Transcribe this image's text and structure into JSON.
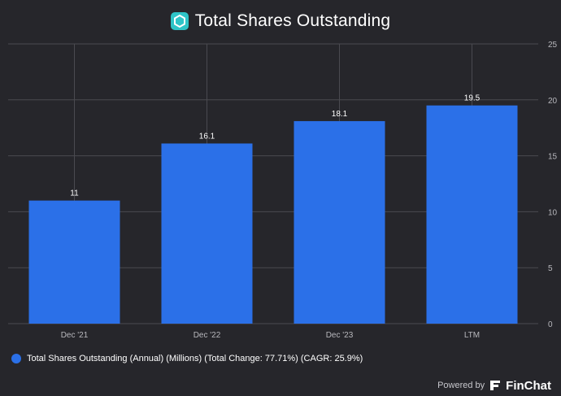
{
  "title": "Total Shares Outstanding",
  "title_icon": "hexagon-logo-icon",
  "colors": {
    "background": "#26262b",
    "bar": "#2b70e8",
    "grid": "#4a4a50",
    "text": "#ffffff",
    "tick": "#b8b8bd",
    "icon_bg": "#2ec4c7"
  },
  "chart_data": {
    "type": "bar",
    "categories": [
      "Dec '21",
      "Dec '22",
      "Dec '23",
      "LTM"
    ],
    "series": [
      {
        "name": "Total Shares Outstanding (Annual) (Millions) (Total Change: 77.71%) (CAGR: 25.9%)",
        "values": [
          11,
          16.1,
          18.1,
          19.5
        ],
        "labels": [
          "11",
          "16.1",
          "18.1",
          "19.5"
        ]
      }
    ],
    "ylim": [
      0,
      25
    ],
    "yticks": [
      "0",
      "5",
      "10",
      "15",
      "20",
      "25"
    ],
    "y_axis_position": "right",
    "grid": true,
    "legend_position": "bottom-left"
  },
  "footer": {
    "powered_by": "Powered by",
    "brand": "FinChat",
    "brand_icon": "finchat-logo-icon"
  }
}
